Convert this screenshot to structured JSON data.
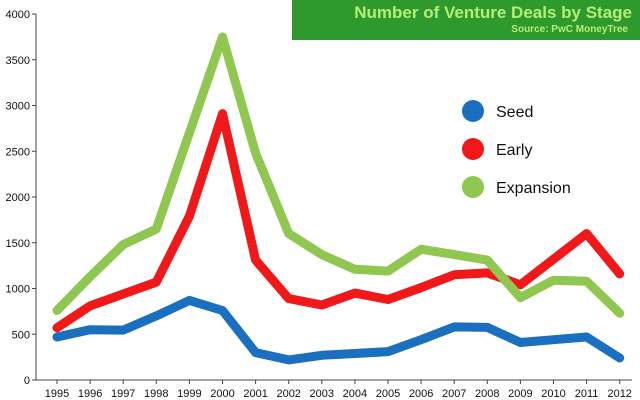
{
  "header": {
    "title": "Number of Venture Deals by Stage",
    "source": "Source: PwC MoneyTree"
  },
  "chart_data": {
    "type": "line",
    "title": "Number of Venture Deals by Stage",
    "subtitle": "Source: PwC MoneyTree",
    "xlabel": "",
    "ylabel": "",
    "x": [
      "1995",
      "1996",
      "1997",
      "1998",
      "1999",
      "2000",
      "2001",
      "2002",
      "2003",
      "2004",
      "2005",
      "2006",
      "2007",
      "2008",
      "2009",
      "2010",
      "2011",
      "2012"
    ],
    "yticks": [
      0,
      500,
      1000,
      1500,
      2000,
      2500,
      3000,
      3500,
      4000
    ],
    "ylim": [
      0,
      4000
    ],
    "grid": false,
    "legend": "right",
    "series": [
      {
        "name": "Seed",
        "color": "#1a6fbf",
        "values": [
          470,
          550,
          545,
          700,
          870,
          760,
          300,
          220,
          270,
          290,
          310,
          440,
          580,
          575,
          410,
          440,
          470,
          240
        ]
      },
      {
        "name": "Early",
        "color": "#f01818",
        "values": [
          570,
          810,
          940,
          1070,
          1790,
          2910,
          1310,
          890,
          820,
          950,
          880,
          1010,
          1150,
          1170,
          1040,
          1320,
          1600,
          1160
        ]
      },
      {
        "name": "Expansion",
        "color": "#8fc750",
        "values": [
          760,
          1130,
          1480,
          1650,
          2700,
          3750,
          2480,
          1600,
          1370,
          1210,
          1190,
          1430,
          1370,
          1310,
          900,
          1090,
          1080,
          730
        ]
      }
    ]
  }
}
